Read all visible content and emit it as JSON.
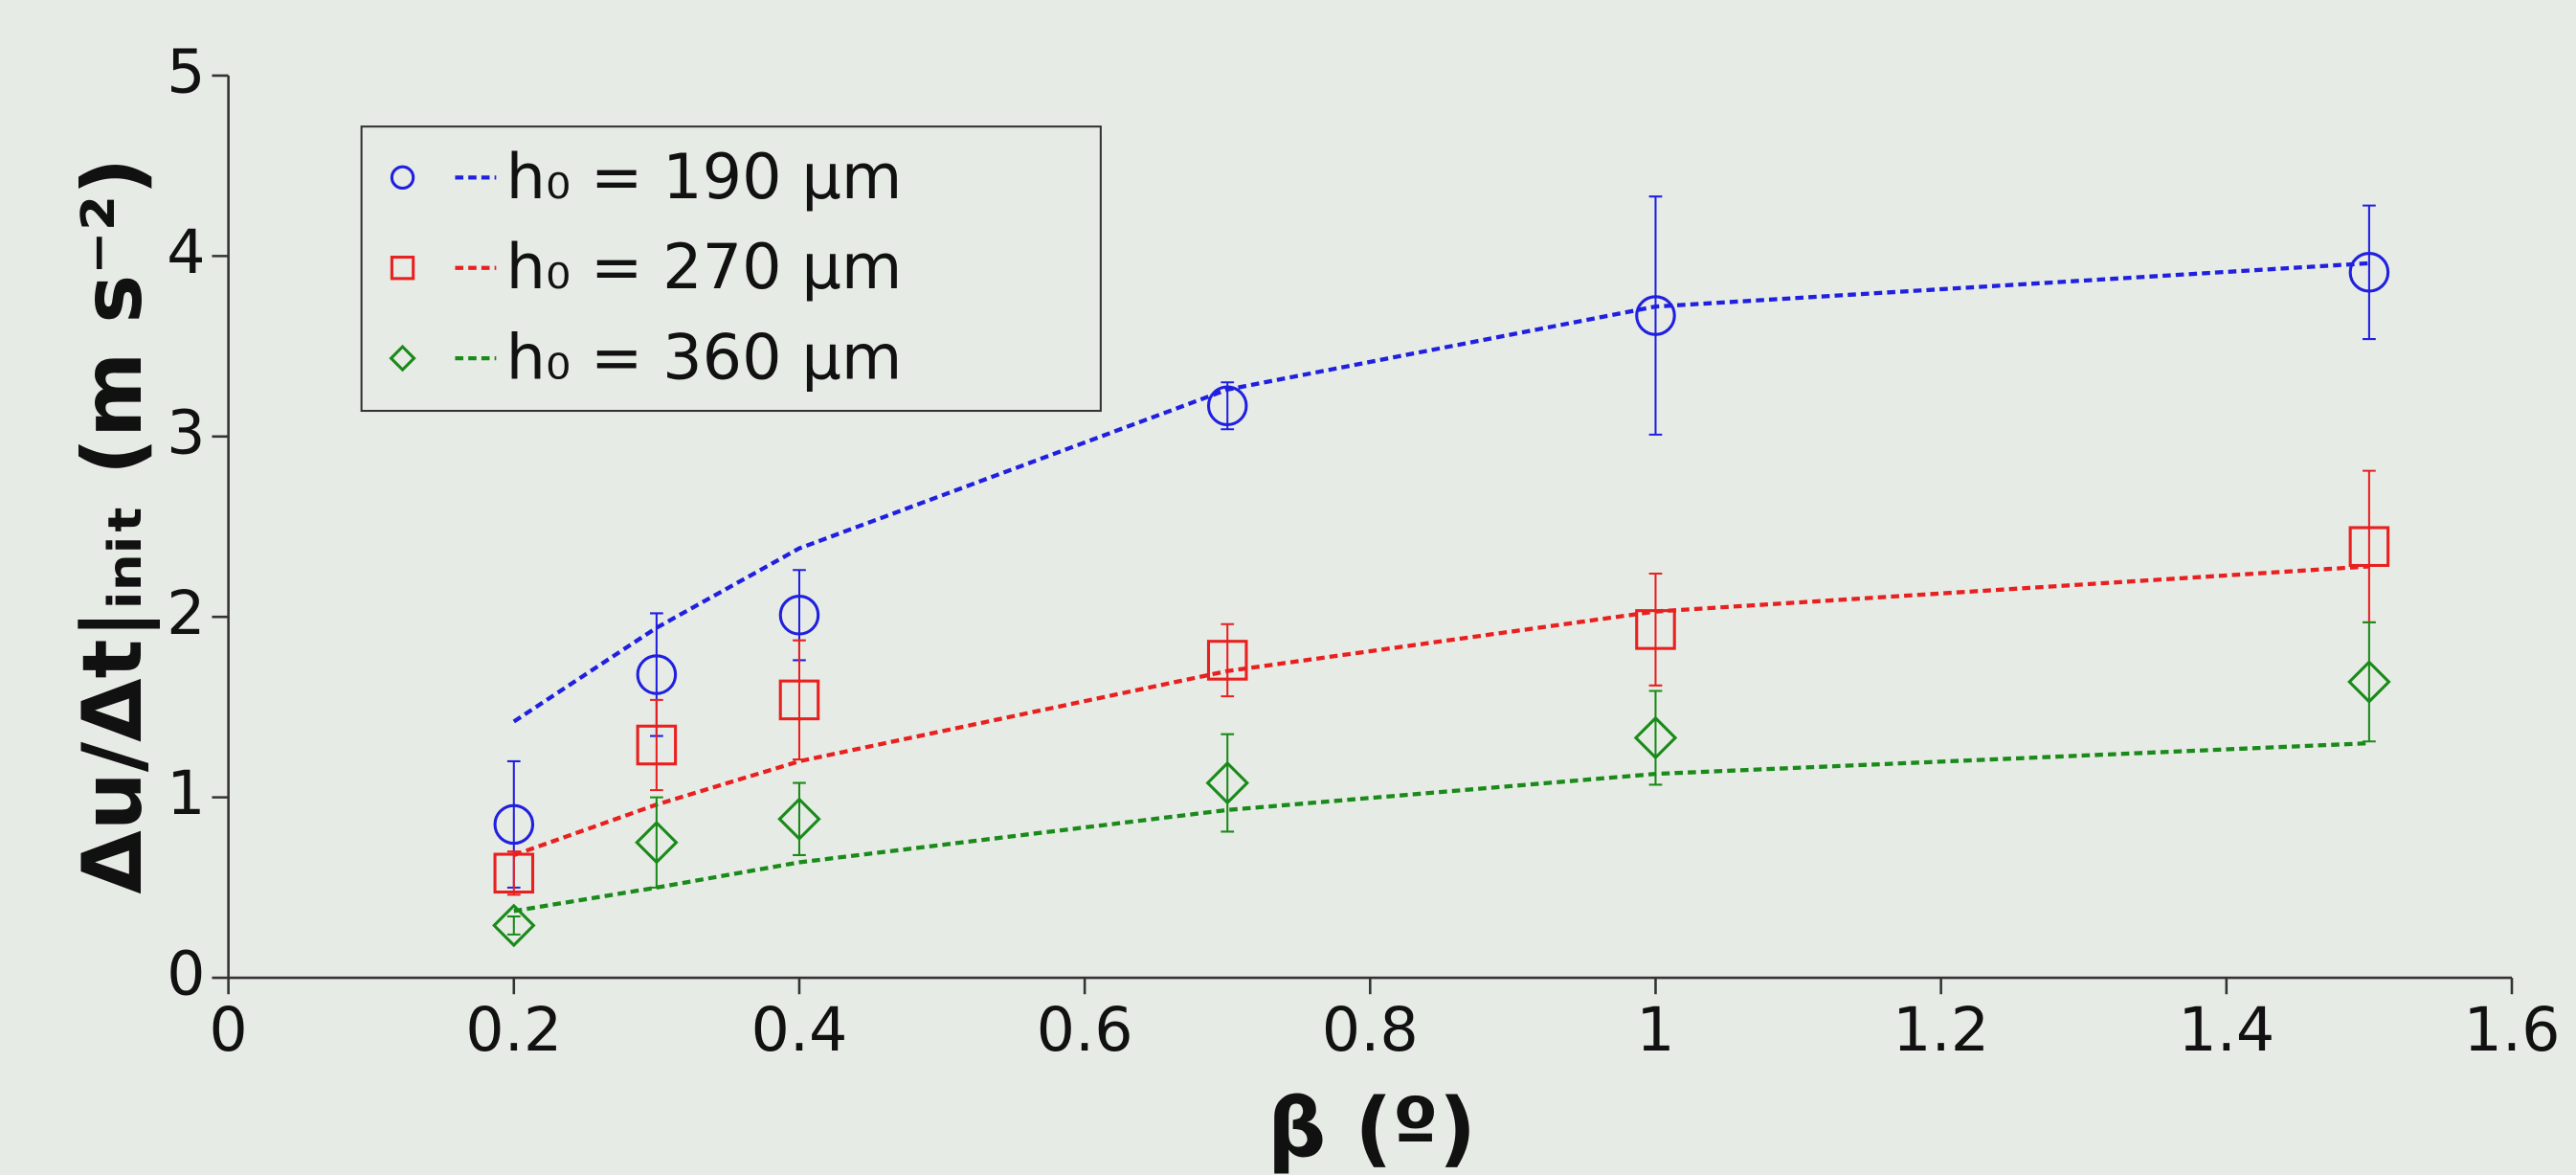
{
  "chart_data": {
    "type": "scatter",
    "x_label": "β (º)",
    "y_label": "Δu/Δt|ᵢₙᵢₜ (m s⁻²)",
    "x": [
      0.2,
      0.3,
      0.4,
      0.7,
      1,
      1.5
    ],
    "series": [
      {
        "name": "h₀ = 190 µm",
        "color": "#2020e0",
        "marker": "circle",
        "values": [
          0.85,
          1.68,
          2.01,
          3.17,
          3.67,
          3.91
        ],
        "errors": [
          0.35,
          0.34,
          0.25,
          0.13,
          0.66,
          0.37
        ],
        "fit": [
          1.42,
          1.94,
          2.38,
          3.26,
          3.72,
          3.96
        ]
      },
      {
        "name": "h₀ = 270 µm",
        "color": "#e82020",
        "marker": "square",
        "values": [
          0.58,
          1.29,
          1.54,
          1.76,
          1.93,
          2.39
        ],
        "errors": [
          0.12,
          0.25,
          0.33,
          0.2,
          0.31,
          0.42
        ],
        "fit": [
          0.68,
          0.96,
          1.2,
          1.7,
          2.03,
          2.28
        ]
      },
      {
        "name": "h₀ = 360 µm",
        "color": "#1a8a1a",
        "marker": "diamond",
        "values": [
          0.29,
          0.75,
          0.88,
          1.08,
          1.33,
          1.64
        ],
        "errors": [
          0.05,
          0.25,
          0.2,
          0.27,
          0.26,
          0.33
        ],
        "fit": [
          0.37,
          0.5,
          0.64,
          0.93,
          1.13,
          1.3
        ]
      }
    ],
    "xlim": [
      0,
      1.6
    ],
    "xticks": [
      0,
      0.2,
      0.4,
      0.6,
      0.8,
      1,
      1.2,
      1.4,
      1.6
    ],
    "ylim": [
      0,
      5
    ],
    "yticks": [
      0,
      1,
      2,
      3,
      4,
      5
    ],
    "legend": "upper left"
  }
}
